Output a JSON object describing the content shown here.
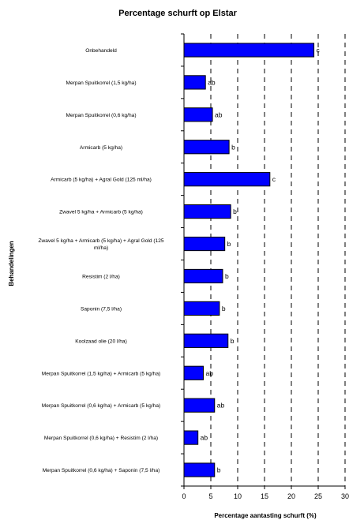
{
  "chart_data": {
    "type": "bar",
    "orientation": "horizontal",
    "title": "Percentage schurft op Elstar",
    "xlabel": "Percentage aantasting schurft (%)",
    "ylabel": "Behandelingen",
    "xlim": [
      0,
      30
    ],
    "x_ticks": [
      "0",
      "5",
      "10",
      "15",
      "20",
      "25",
      "30"
    ],
    "grid": "vertical dashed",
    "categories": [
      {
        "label_lines": [
          "Onbehandeld"
        ],
        "value": 24.2,
        "significance": "c"
      },
      {
        "label_lines": [
          "Merpan Spuitkorrel (1,5 kg/ha)"
        ],
        "value": 4.0,
        "significance": "ab"
      },
      {
        "label_lines": [
          "Merpan Spuitkorrel (0,6 kg/ha)"
        ],
        "value": 5.3,
        "significance": "ab"
      },
      {
        "label_lines": [
          "Armicarb (5 kg/ha)"
        ],
        "value": 8.4,
        "significance": "b"
      },
      {
        "label_lines": [
          "Armicarb (5 kg/ha) + Agral Gold (125 ml/ha)"
        ],
        "value": 16.0,
        "significance": "c"
      },
      {
        "label_lines": [
          "Zwavel 5 kg/ha + Armicarb (5 kg/ha)"
        ],
        "value": 8.7,
        "significance": "b"
      },
      {
        "label_lines": [
          "Zwavel 5 kg/ha + Armicarb (5 kg/ha) + Agral Gold (125",
          "ml/ha)"
        ],
        "value": 7.6,
        "significance": "b"
      },
      {
        "label_lines": [
          "Resistim (2 l/ha)"
        ],
        "value": 7.2,
        "significance": "b"
      },
      {
        "label_lines": [
          "Saponin (7,5 l/ha)"
        ],
        "value": 6.6,
        "significance": "b"
      },
      {
        "label_lines": [
          "Koolzaad olie (20 l/ha)"
        ],
        "value": 8.2,
        "significance": "b"
      },
      {
        "label_lines": [
          "Merpan Spuitkorrel (1,5 kg/ha) + Armicarb (5 kg/ha)"
        ],
        "value": 3.6,
        "significance": "ab"
      },
      {
        "label_lines": [
          "Merpan Spuitkorrel (0,6 kg/ha) + Armicarb (5 kg/ha)"
        ],
        "value": 5.7,
        "significance": "ab"
      },
      {
        "label_lines": [
          "Merpan Spuitkorrel (0,6 kg/ha) + Resistim (2 l/ha)"
        ],
        "value": 2.6,
        "significance": "ab"
      },
      {
        "label_lines": [
          "Merpan Spuitkorrel (0,6 kg/ha) + Saponin (7,5 l/ha)"
        ],
        "value": 5.7,
        "significance": "b"
      }
    ],
    "colors": {
      "bar_fill": "#0000ff",
      "bar_stroke": "#000000",
      "grid": "#000000"
    }
  }
}
